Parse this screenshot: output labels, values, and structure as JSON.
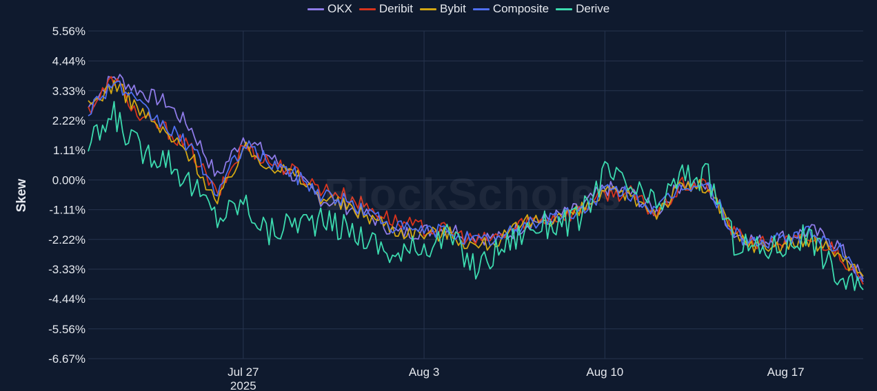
{
  "legend": [
    {
      "name": "OKX",
      "color": "#8e7be8"
    },
    {
      "name": "Deribit",
      "color": "#d8331c"
    },
    {
      "name": "Bybit",
      "color": "#d3a713"
    },
    {
      "name": "Composite",
      "color": "#4f6ff0"
    },
    {
      "name": "Derive",
      "color": "#3cdbaf"
    }
  ],
  "watermark": "BlockScholes",
  "chart_data": {
    "type": "line",
    "ylabel": "Skew",
    "xlabel": "",
    "y_ticks": [
      "5.56%",
      "4.44%",
      "3.33%",
      "2.22%",
      "1.11%",
      "0.00%",
      "-1.11%",
      "-2.22%",
      "-3.33%",
      "-4.44%",
      "-5.56%",
      "-6.67%"
    ],
    "x_ticks": [
      {
        "label": "Jul 27",
        "sublabel": "2025",
        "date": "2025-07-27"
      },
      {
        "label": "Aug 3",
        "sublabel": "",
        "date": "2025-08-03"
      },
      {
        "label": "Aug 10",
        "sublabel": "",
        "date": "2025-08-10"
      },
      {
        "label": "Aug 17",
        "sublabel": "",
        "date": "2025-08-17"
      }
    ],
    "ylim": [
      -6.67,
      5.56
    ],
    "xlim": [
      "2025-07-21",
      "2025-08-20"
    ],
    "grid": true,
    "legend_position": "top",
    "series": [
      {
        "name": "OKX",
        "color": "#8e7be8",
        "points": [
          [
            "2025-07-21",
            2.7
          ],
          [
            "2025-07-22",
            3.9
          ],
          [
            "2025-07-23",
            3.3
          ],
          [
            "2025-07-24",
            2.9
          ],
          [
            "2025-07-25",
            1.9
          ],
          [
            "2025-07-26",
            0.1
          ],
          [
            "2025-07-27",
            1.6
          ],
          [
            "2025-07-28",
            0.9
          ],
          [
            "2025-07-29",
            0.1
          ],
          [
            "2025-07-30",
            -0.7
          ],
          [
            "2025-07-31",
            -1.0
          ],
          [
            "2025-08-01",
            -1.4
          ],
          [
            "2025-08-02",
            -2.0
          ],
          [
            "2025-08-03",
            -1.9
          ],
          [
            "2025-08-04",
            -1.8
          ],
          [
            "2025-08-05",
            -2.1
          ],
          [
            "2025-08-06",
            -2.2
          ],
          [
            "2025-08-07",
            -1.6
          ],
          [
            "2025-08-08",
            -1.4
          ],
          [
            "2025-08-09",
            -1.1
          ],
          [
            "2025-08-10",
            -0.3
          ],
          [
            "2025-08-11",
            -0.5
          ],
          [
            "2025-08-12",
            -1.2
          ],
          [
            "2025-08-13",
            -0.1
          ],
          [
            "2025-08-14",
            -0.3
          ],
          [
            "2025-08-15",
            -2.0
          ],
          [
            "2025-08-16",
            -2.3
          ],
          [
            "2025-08-17",
            -2.1
          ],
          [
            "2025-08-18",
            -1.9
          ],
          [
            "2025-08-19",
            -2.4
          ],
          [
            "2025-08-20",
            -3.7
          ]
        ]
      },
      {
        "name": "Deribit",
        "color": "#d8331c",
        "points": [
          [
            "2025-07-21",
            2.6
          ],
          [
            "2025-07-22",
            3.8
          ],
          [
            "2025-07-23",
            2.3
          ],
          [
            "2025-07-24",
            1.9
          ],
          [
            "2025-07-25",
            1.1
          ],
          [
            "2025-07-26",
            -0.6
          ],
          [
            "2025-07-27",
            1.3
          ],
          [
            "2025-07-28",
            0.7
          ],
          [
            "2025-07-29",
            0.3
          ],
          [
            "2025-07-30",
            -0.3
          ],
          [
            "2025-07-31",
            -0.6
          ],
          [
            "2025-08-01",
            -1.1
          ],
          [
            "2025-08-02",
            -1.6
          ],
          [
            "2025-08-03",
            -1.8
          ],
          [
            "2025-08-04",
            -1.9
          ],
          [
            "2025-08-05",
            -2.3
          ],
          [
            "2025-08-06",
            -2.1
          ],
          [
            "2025-08-07",
            -1.5
          ],
          [
            "2025-08-08",
            -1.4
          ],
          [
            "2025-08-09",
            -1.2
          ],
          [
            "2025-08-10",
            -0.5
          ],
          [
            "2025-08-11",
            -0.5
          ],
          [
            "2025-08-12",
            -1.3
          ],
          [
            "2025-08-13",
            -0.2
          ],
          [
            "2025-08-14",
            -0.2
          ],
          [
            "2025-08-15",
            -2.0
          ],
          [
            "2025-08-16",
            -2.4
          ],
          [
            "2025-08-17",
            -2.3
          ],
          [
            "2025-08-18",
            -2.2
          ],
          [
            "2025-08-19",
            -2.6
          ],
          [
            "2025-08-20",
            -3.9
          ]
        ]
      },
      {
        "name": "Bybit",
        "color": "#d3a713",
        "points": [
          [
            "2025-07-21",
            2.7
          ],
          [
            "2025-07-22",
            3.6
          ],
          [
            "2025-07-23",
            2.6
          ],
          [
            "2025-07-24",
            1.7
          ],
          [
            "2025-07-25",
            0.9
          ],
          [
            "2025-07-26",
            -0.9
          ],
          [
            "2025-07-27",
            1.2
          ],
          [
            "2025-07-28",
            0.6
          ],
          [
            "2025-07-29",
            0.2
          ],
          [
            "2025-07-30",
            -0.6
          ],
          [
            "2025-07-31",
            -1.0
          ],
          [
            "2025-08-01",
            -1.4
          ],
          [
            "2025-08-02",
            -1.9
          ],
          [
            "2025-08-03",
            -2.0
          ],
          [
            "2025-08-04",
            -2.0
          ],
          [
            "2025-08-05",
            -2.5
          ],
          [
            "2025-08-06",
            -2.2
          ],
          [
            "2025-08-07",
            -1.6
          ],
          [
            "2025-08-08",
            -1.4
          ],
          [
            "2025-08-09",
            -1.2
          ],
          [
            "2025-08-10",
            -0.5
          ],
          [
            "2025-08-11",
            -0.6
          ],
          [
            "2025-08-12",
            -1.2
          ],
          [
            "2025-08-13",
            -0.2
          ],
          [
            "2025-08-14",
            -0.3
          ],
          [
            "2025-08-15",
            -2.1
          ],
          [
            "2025-08-16",
            -2.5
          ],
          [
            "2025-08-17",
            -2.4
          ],
          [
            "2025-08-18",
            -2.3
          ],
          [
            "2025-08-19",
            -2.7
          ],
          [
            "2025-08-20",
            -3.6
          ]
        ]
      },
      {
        "name": "Composite",
        "color": "#4f6ff0",
        "points": [
          [
            "2025-07-21",
            2.6
          ],
          [
            "2025-07-22",
            3.7
          ],
          [
            "2025-07-23",
            2.7
          ],
          [
            "2025-07-24",
            2.0
          ],
          [
            "2025-07-25",
            1.2
          ],
          [
            "2025-07-26",
            -0.5
          ],
          [
            "2025-07-27",
            1.3
          ],
          [
            "2025-07-28",
            0.7
          ],
          [
            "2025-07-29",
            0.2
          ],
          [
            "2025-07-30",
            -0.5
          ],
          [
            "2025-07-31",
            -0.8
          ],
          [
            "2025-08-01",
            -1.3
          ],
          [
            "2025-08-02",
            -1.8
          ],
          [
            "2025-08-03",
            -1.9
          ],
          [
            "2025-08-04",
            -1.9
          ],
          [
            "2025-08-05",
            -2.3
          ],
          [
            "2025-08-06",
            -2.2
          ],
          [
            "2025-08-07",
            -1.6
          ],
          [
            "2025-08-08",
            -1.4
          ],
          [
            "2025-08-09",
            -1.2
          ],
          [
            "2025-08-10",
            -0.4
          ],
          [
            "2025-08-11",
            -0.5
          ],
          [
            "2025-08-12",
            -1.2
          ],
          [
            "2025-08-13",
            -0.2
          ],
          [
            "2025-08-14",
            -0.2
          ],
          [
            "2025-08-15",
            -2.0
          ],
          [
            "2025-08-16",
            -2.4
          ],
          [
            "2025-08-17",
            -2.2
          ],
          [
            "2025-08-18",
            -2.0
          ],
          [
            "2025-08-19",
            -2.5
          ],
          [
            "2025-08-20",
            -3.8
          ]
        ]
      },
      {
        "name": "Derive",
        "color": "#3cdbaf",
        "points": [
          [
            "2025-07-21",
            1.2
          ],
          [
            "2025-07-22",
            2.4
          ],
          [
            "2025-07-23",
            1.1
          ],
          [
            "2025-07-24",
            0.9
          ],
          [
            "2025-07-25",
            -0.2
          ],
          [
            "2025-07-26",
            -1.4
          ],
          [
            "2025-07-27",
            -0.8
          ],
          [
            "2025-07-28",
            -2.0
          ],
          [
            "2025-07-29",
            -1.5
          ],
          [
            "2025-07-30",
            -1.6
          ],
          [
            "2025-07-31",
            -1.8
          ],
          [
            "2025-08-01",
            -2.3
          ],
          [
            "2025-08-02",
            -2.9
          ],
          [
            "2025-08-03",
            -2.4
          ],
          [
            "2025-08-04",
            -2.1
          ],
          [
            "2025-08-05",
            -3.3
          ],
          [
            "2025-08-06",
            -2.5
          ],
          [
            "2025-08-07",
            -1.8
          ],
          [
            "2025-08-08",
            -1.6
          ],
          [
            "2025-08-09",
            -1.5
          ],
          [
            "2025-08-10",
            0.3
          ],
          [
            "2025-08-11",
            -0.3
          ],
          [
            "2025-08-12",
            -1.0
          ],
          [
            "2025-08-13",
            0.2
          ],
          [
            "2025-08-14",
            0.1
          ],
          [
            "2025-08-15",
            -2.3
          ],
          [
            "2025-08-16",
            -2.6
          ],
          [
            "2025-08-17",
            -2.4
          ],
          [
            "2025-08-18",
            -2.1
          ],
          [
            "2025-08-19",
            -3.6
          ],
          [
            "2025-08-20",
            -4.1
          ]
        ]
      }
    ]
  }
}
